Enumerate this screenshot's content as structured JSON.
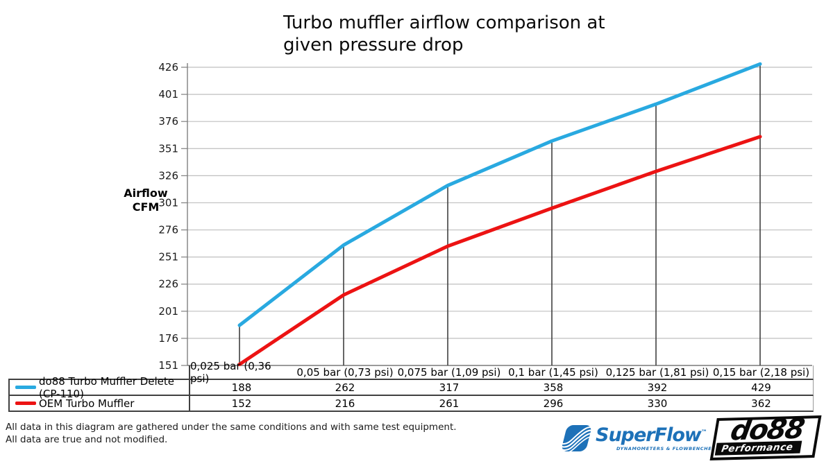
{
  "page": {
    "title": "Turbo muffler airflow comparison at\ngiven pressure drop"
  },
  "chart_data": {
    "type": "line",
    "title": "Turbo muffler airflow comparison at given pressure drop",
    "ylabel": "Airflow CFM",
    "xlabel": "",
    "categories": [
      "0,025 bar (0,36 psi)",
      "0,05 bar (0,73 psi)",
      "0,075 bar (1,09 psi)",
      "0,1 bar (1,45 psi)",
      "0,125 bar (1,81 psi)",
      "0,15 bar (2,18 psi)"
    ],
    "series": [
      {
        "name": "do88 Turbo Muffler Delete (CP-110)",
        "color": "#29a9e0",
        "values": [
          188,
          262,
          317,
          358,
          392,
          429
        ]
      },
      {
        "name": "OEM Turbo Muffler",
        "color": "#ec1313",
        "values": [
          152,
          216,
          261,
          296,
          330,
          362
        ]
      }
    ],
    "y_ticks": [
      151,
      176,
      201,
      226,
      251,
      276,
      301,
      326,
      351,
      376,
      401,
      426
    ],
    "ylim": [
      151,
      429
    ],
    "grid": true,
    "drop_lines_from_series": 0,
    "legend_position": "table-left",
    "colors": {
      "gridline": "#bfbfbf",
      "axis": "#7f7f7f",
      "drop_line": "#404040",
      "tick_label": "#1a1a1a"
    }
  },
  "footer": {
    "note": "All data in this diagram are gathered under the same conditions and with same test equipment.\nAll data are true and not modified."
  },
  "logos": {
    "superflow": {
      "name": "SuperFlow",
      "trademark": "™",
      "tagline": "DYNAMOMETERS & FLOWBENCHES",
      "color": "#1d71b8"
    },
    "do88": {
      "name": "do88",
      "tagline": "Performance"
    }
  }
}
